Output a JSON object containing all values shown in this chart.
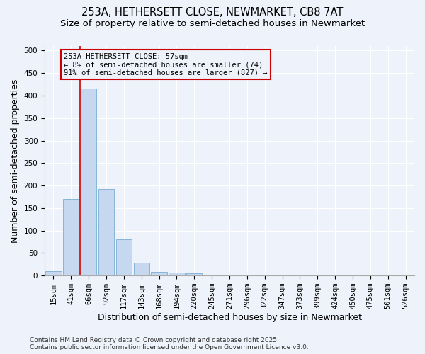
{
  "title1": "253A, HETHERSETT CLOSE, NEWMARKET, CB8 7AT",
  "title2": "Size of property relative to semi-detached houses in Newmarket",
  "xlabel": "Distribution of semi-detached houses by size in Newmarket",
  "ylabel": "Number of semi-detached properties",
  "categories": [
    "15sqm",
    "41sqm",
    "66sqm",
    "92sqm",
    "117sqm",
    "143sqm",
    "168sqm",
    "194sqm",
    "220sqm",
    "245sqm",
    "271sqm",
    "296sqm",
    "322sqm",
    "347sqm",
    "373sqm",
    "399sqm",
    "424sqm",
    "450sqm",
    "475sqm",
    "501sqm",
    "526sqm"
  ],
  "values": [
    10,
    170,
    415,
    193,
    80,
    28,
    9,
    7,
    5,
    2,
    1,
    0,
    0,
    0,
    0,
    0,
    0,
    0,
    0,
    0,
    0
  ],
  "bar_color": "#c5d8f0",
  "bar_edge_color": "#7aadd4",
  "vline_color": "#cc0000",
  "vline_x": 1.5,
  "annotation_line1": "253A HETHERSETT CLOSE: 57sqm",
  "annotation_line2": "← 8% of semi-detached houses are smaller (74)",
  "annotation_line3": "91% of semi-detached houses are larger (827) →",
  "ylim": [
    0,
    510
  ],
  "yticks": [
    0,
    50,
    100,
    150,
    200,
    250,
    300,
    350,
    400,
    450,
    500
  ],
  "background_color": "#eef2fa",
  "footer": "Contains HM Land Registry data © Crown copyright and database right 2025.\nContains public sector information licensed under the Open Government Licence v3.0.",
  "grid_color": "#ffffff",
  "title_fontsize": 10.5,
  "subtitle_fontsize": 9.5,
  "tick_fontsize": 7.5,
  "label_fontsize": 9,
  "footer_fontsize": 6.5
}
